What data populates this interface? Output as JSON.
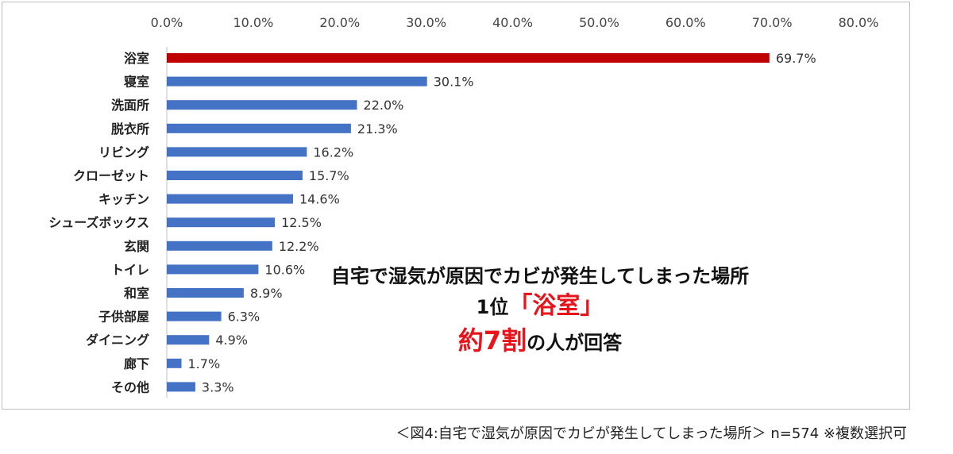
{
  "chart_data": {
    "type": "bar",
    "orientation": "horizontal",
    "categories": [
      "浴室",
      "寝室",
      "洗面所",
      "脱衣所",
      "リビング",
      "クローゼット",
      "キッチン",
      "シューズボックス",
      "玄関",
      "トイレ",
      "和室",
      "子供部屋",
      "ダイニング",
      "廊下",
      "その他"
    ],
    "values": [
      69.7,
      30.1,
      22.0,
      21.3,
      16.2,
      15.7,
      14.6,
      12.5,
      12.2,
      10.6,
      8.9,
      6.3,
      4.9,
      1.7,
      3.3
    ],
    "value_labels": [
      "69.7%",
      "30.1%",
      "22.0%",
      "21.3%",
      "16.2%",
      "15.7%",
      "14.6%",
      "12.5%",
      "12.2%",
      "10.6%",
      "8.9%",
      "6.3%",
      "4.9%",
      "1.7%",
      "3.3%"
    ],
    "xlim": [
      0,
      80
    ],
    "x_ticks": [
      "0.0%",
      "10.0%",
      "20.0%",
      "30.0%",
      "40.0%",
      "50.0%",
      "60.0%",
      "70.0%",
      "80.0%"
    ],
    "x_axis_position": "top",
    "grid": false,
    "colors": {
      "highlight": "#c00000",
      "default": "#4472c4"
    },
    "highlight_index": 0,
    "title": "",
    "xlabel": "",
    "ylabel": ""
  },
  "annotation": {
    "line1": "自宅で湿気が原因でカビが発生してしまった場所",
    "line2_prefix": "1位",
    "line2_highlight": "「浴室」",
    "line3_highlight": "約7割",
    "line3_suffix": "の人が回答",
    "highlight_color": "#e8141b"
  },
  "caption": "＜図4:自宅で湿気が原因でカビが発生してしまった場所＞ n=574 ※複数選択可"
}
